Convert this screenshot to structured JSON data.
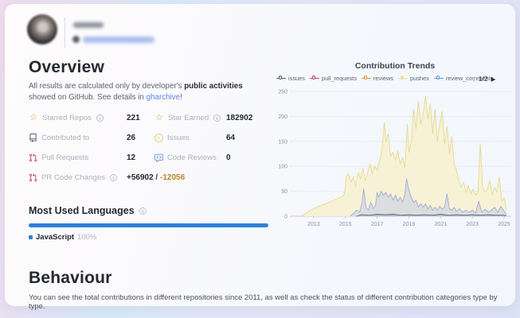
{
  "icons": {
    "star": "☆"
  },
  "overview": {
    "title": "Overview",
    "description": {
      "part1": "All results are calculated only by developer's ",
      "bold": "public activities",
      "part2": " showed on GitHub. See details in ",
      "link": "gharchive",
      "part3": "!"
    },
    "stats": {
      "starred_repos": {
        "label": "Starred Repos",
        "value": "221"
      },
      "star_earned": {
        "label": "Star Earned",
        "value": "182902"
      },
      "contributed_to": {
        "label": "Contributed to",
        "value": "26"
      },
      "issues": {
        "label": "Issues",
        "value": "64"
      },
      "pull_requests": {
        "label": "Pull Requests",
        "value": "12"
      },
      "code_reviews": {
        "label": "Code Reviews",
        "value": "0"
      },
      "pr_code_changes": {
        "label": "PR Code Changes",
        "additions": "+56902",
        "separator": " / ",
        "deletions": "-12056"
      }
    }
  },
  "languages": {
    "title": "Most Used Languages",
    "bar_color": "#2e80d6",
    "items": [
      {
        "name": "JavaScript",
        "percent": "100%",
        "color": "#2e80d6"
      }
    ]
  },
  "chart": {
    "title": "Contribution Trends",
    "pagination": {
      "prev": "◀",
      "current": "1/2",
      "next": "▶"
    }
  },
  "chart_data": {
    "type": "area",
    "title": "Contribution Trends",
    "x_axis": {
      "min": 2011.6,
      "max": 2025.45,
      "ticks": [
        2013,
        2015,
        2017,
        2019,
        2021,
        2023,
        2025
      ]
    },
    "y_axis": {
      "min": 0,
      "max": 250,
      "ticks": [
        0,
        50,
        100,
        150,
        200,
        250
      ]
    },
    "legend": [
      {
        "label": "issues",
        "color": "#4d5b77",
        "filled": false
      },
      {
        "label": "pull_requests",
        "color": "#b0476a",
        "filled": false
      },
      {
        "label": "reviews",
        "color": "#df8a4b",
        "filled": false
      },
      {
        "label": "pushes",
        "color": "#ece0a4",
        "filled": true
      },
      {
        "label": "review_comments",
        "color": "#4f8edc",
        "filled": false
      }
    ],
    "series": [
      {
        "name": "pushes",
        "color": "#e7d98f",
        "fill": "#f7f1d0",
        "fill_opacity": 0.9,
        "points": [
          [
            2012.2,
            0
          ],
          [
            2012.6,
            8
          ],
          [
            2013,
            15
          ],
          [
            2013.5,
            22
          ],
          [
            2014,
            28
          ],
          [
            2014.5,
            35
          ],
          [
            2014.9,
            42
          ],
          [
            2015.0,
            60
          ],
          [
            2015.05,
            80
          ],
          [
            2015.2,
            85
          ],
          [
            2015.35,
            68
          ],
          [
            2015.5,
            78
          ],
          [
            2015.65,
            60
          ],
          [
            2015.8,
            88
          ],
          [
            2015.95,
            75
          ],
          [
            2016.1,
            95
          ],
          [
            2016.25,
            72
          ],
          [
            2016.4,
            88
          ],
          [
            2016.55,
            105
          ],
          [
            2016.7,
            85
          ],
          [
            2016.85,
            100
          ],
          [
            2017.0,
            92
          ],
          [
            2017.15,
            110
          ],
          [
            2017.3,
            130
          ],
          [
            2017.45,
            188
          ],
          [
            2017.55,
            150
          ],
          [
            2017.7,
            165
          ],
          [
            2017.85,
            120
          ],
          [
            2018.0,
            128
          ],
          [
            2018.15,
            112
          ],
          [
            2018.3,
            132
          ],
          [
            2018.45,
            105
          ],
          [
            2018.6,
            118
          ],
          [
            2018.75,
            98
          ],
          [
            2018.9,
            185
          ],
          [
            2019.0,
            128
          ],
          [
            2019.15,
            150
          ],
          [
            2019.3,
            215
          ],
          [
            2019.45,
            175
          ],
          [
            2019.6,
            230
          ],
          [
            2019.75,
            185
          ],
          [
            2019.9,
            205
          ],
          [
            2020.05,
            240
          ],
          [
            2020.2,
            195
          ],
          [
            2020.35,
            225
          ],
          [
            2020.5,
            165
          ],
          [
            2020.65,
            215
          ],
          [
            2020.8,
            150
          ],
          [
            2020.95,
            185
          ],
          [
            2021.1,
            210
          ],
          [
            2021.25,
            145
          ],
          [
            2021.4,
            180
          ],
          [
            2021.55,
            125
          ],
          [
            2021.7,
            160
          ],
          [
            2021.85,
            105
          ],
          [
            2022.0,
            92
          ],
          [
            2022.15,
            70
          ],
          [
            2022.3,
            58
          ],
          [
            2022.45,
            68
          ],
          [
            2022.6,
            48
          ],
          [
            2022.75,
            62
          ],
          [
            2022.9,
            45
          ],
          [
            2023.05,
            55
          ],
          [
            2023.2,
            42
          ],
          [
            2023.35,
            50
          ],
          [
            2023.5,
            145
          ],
          [
            2023.65,
            58
          ],
          [
            2023.8,
            48
          ],
          [
            2023.95,
            55
          ],
          [
            2024.1,
            72
          ],
          [
            2024.25,
            42
          ],
          [
            2024.4,
            58
          ],
          [
            2024.55,
            48
          ],
          [
            2024.7,
            78
          ],
          [
            2024.85,
            30
          ],
          [
            2025.0,
            38
          ],
          [
            2025.15,
            12
          ]
        ]
      },
      {
        "name": "review_comments",
        "color": "#9fadd9",
        "fill": "#b9c4e8",
        "fill_opacity": 0.45,
        "points": [
          [
            2015.3,
            0
          ],
          [
            2015.5,
            5
          ],
          [
            2015.7,
            12
          ],
          [
            2015.9,
            8
          ],
          [
            2016.05,
            28
          ],
          [
            2016.15,
            55
          ],
          [
            2016.3,
            18
          ],
          [
            2016.45,
            12
          ],
          [
            2016.6,
            28
          ],
          [
            2016.75,
            15
          ],
          [
            2016.9,
            22
          ],
          [
            2017.0,
            48
          ],
          [
            2017.1,
            38
          ],
          [
            2017.25,
            50
          ],
          [
            2017.4,
            42
          ],
          [
            2017.55,
            48
          ],
          [
            2017.7,
            38
          ],
          [
            2017.85,
            45
          ],
          [
            2018.0,
            32
          ],
          [
            2018.15,
            42
          ],
          [
            2018.3,
            30
          ],
          [
            2018.45,
            38
          ],
          [
            2018.6,
            28
          ],
          [
            2018.75,
            45
          ],
          [
            2018.85,
            75
          ],
          [
            2019.0,
            52
          ],
          [
            2019.15,
            38
          ],
          [
            2019.3,
            28
          ],
          [
            2019.45,
            32
          ],
          [
            2019.6,
            18
          ],
          [
            2019.75,
            25
          ],
          [
            2019.9,
            18
          ],
          [
            2020.05,
            25
          ],
          [
            2020.2,
            15
          ],
          [
            2020.35,
            22
          ],
          [
            2020.5,
            12
          ],
          [
            2020.65,
            18
          ],
          [
            2020.8,
            12
          ],
          [
            2020.95,
            20
          ],
          [
            2021.1,
            14
          ],
          [
            2021.25,
            18
          ],
          [
            2021.4,
            45
          ],
          [
            2021.55,
            15
          ],
          [
            2021.7,
            12
          ],
          [
            2021.85,
            18
          ],
          [
            2022.0,
            10
          ],
          [
            2022.2,
            15
          ],
          [
            2022.4,
            8
          ],
          [
            2022.6,
            12
          ],
          [
            2022.8,
            8
          ],
          [
            2023.0,
            12
          ],
          [
            2023.2,
            6
          ],
          [
            2023.4,
            30
          ],
          [
            2023.6,
            8
          ],
          [
            2023.8,
            14
          ],
          [
            2024.0,
            8
          ],
          [
            2024.2,
            12
          ],
          [
            2024.4,
            18
          ],
          [
            2024.6,
            8
          ],
          [
            2024.8,
            20
          ],
          [
            2025.0,
            10
          ],
          [
            2025.15,
            4
          ]
        ]
      },
      {
        "name": "issues",
        "color": "#5d6a85",
        "fill": "#6b7894",
        "fill_opacity": 0.3,
        "points": [
          [
            2015.7,
            0
          ],
          [
            2016,
            3
          ],
          [
            2016.5,
            2
          ],
          [
            2017,
            4
          ],
          [
            2017.5,
            3
          ],
          [
            2018,
            4
          ],
          [
            2018.5,
            2
          ],
          [
            2019,
            3
          ],
          [
            2019.5,
            2
          ],
          [
            2020,
            3
          ],
          [
            2020.5,
            2
          ],
          [
            2021,
            4
          ],
          [
            2021.5,
            2
          ],
          [
            2022,
            3
          ],
          [
            2022.5,
            2
          ],
          [
            2023,
            3
          ],
          [
            2023.5,
            2
          ],
          [
            2024,
            3
          ],
          [
            2024.5,
            2
          ],
          [
            2025,
            2
          ],
          [
            2025.15,
            1
          ]
        ]
      }
    ]
  },
  "behaviour": {
    "title": "Behaviour",
    "description": "You can see the total contributions in different repositories since 2011, as well as check the status of different contribution categories type by type."
  }
}
